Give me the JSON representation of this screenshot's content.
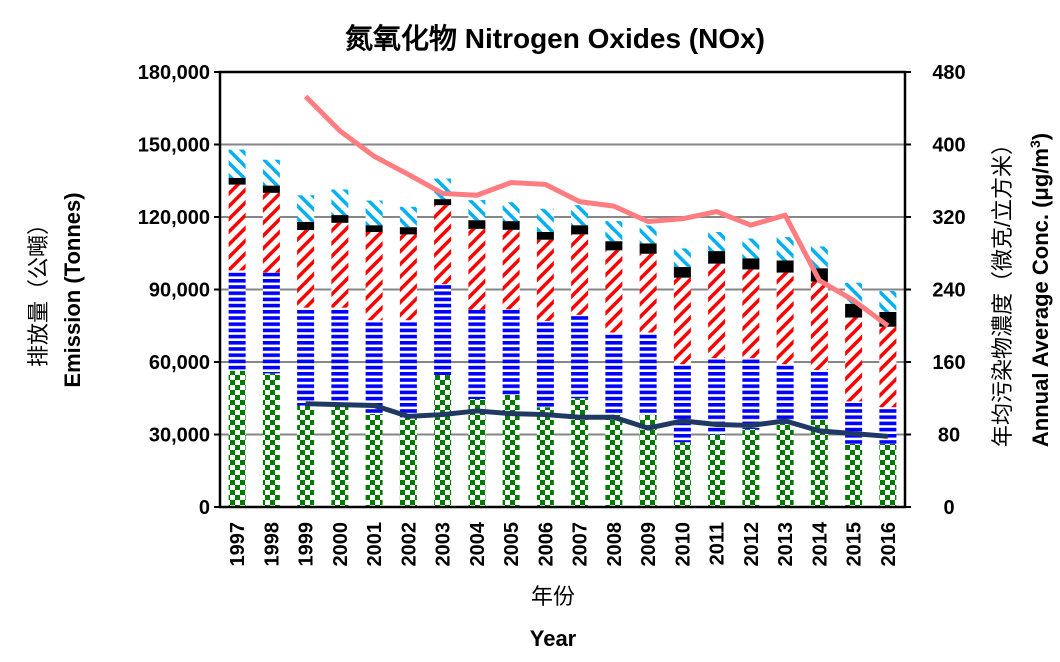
{
  "chart_data": {
    "type": "bar",
    "stacked": true,
    "title": "氮氧化物 Nitrogen Oxides (NOx)",
    "xlabel_zh": "年份",
    "xlabel": "Year",
    "ylabel_zh": "排放量（公噸）",
    "ylabel": "Emission (Tonnes)",
    "y2label_zh": "年均污染物濃度（微克/立方米）",
    "y2label": "Annual Average Conc. (μg/m",
    "y2label_sup": "3",
    "y2label_end": ")",
    "ylim": [
      0,
      180000
    ],
    "yticks": [
      "0",
      "30,000",
      "60,000",
      "90,000",
      "120,000",
      "150,000",
      "180,000"
    ],
    "y2lim": [
      0,
      480
    ],
    "y2ticks": [
      "0",
      "80",
      "160",
      "240",
      "320",
      "400",
      "480"
    ],
    "grid": true,
    "categories": [
      "1997",
      "1998",
      "1999",
      "2000",
      "2001",
      "2002",
      "2003",
      "2004",
      "2005",
      "2006",
      "2007",
      "2008",
      "2009",
      "2010",
      "2011",
      "2012",
      "2013",
      "2014",
      "2015",
      "2016"
    ],
    "series": [
      {
        "pattern": "checker",
        "color": "#007a00",
        "values": [
          56400,
          55300,
          42000,
          42000,
          38500,
          37100,
          54600,
          44700,
          46400,
          41300,
          45000,
          38200,
          38200,
          26800,
          30000,
          32300,
          34400,
          36000,
          26100,
          26100
        ]
      },
      {
        "pattern": "horizontal-stripes",
        "color": "#0000ff",
        "values": [
          41500,
          41700,
          40500,
          40500,
          38800,
          40200,
          37600,
          36900,
          35400,
          35700,
          34500,
          34000,
          34000,
          32300,
          31600,
          29300,
          24700,
          20700,
          17600,
          15200
        ]
      },
      {
        "pattern": "diagonal-down",
        "color": "#ff0000",
        "values": [
          35500,
          33000,
          32100,
          35100,
          36500,
          35500,
          32700,
          33500,
          32900,
          33600,
          33300,
          34000,
          32600,
          35800,
          39100,
          36700,
          37900,
          36600,
          34700,
          33300
        ]
      },
      {
        "pattern": "solid",
        "color": "#000000",
        "values": [
          2800,
          3000,
          3400,
          3200,
          2800,
          3000,
          2500,
          3600,
          3600,
          3200,
          3800,
          3800,
          4300,
          4400,
          5200,
          4600,
          5000,
          5500,
          5700,
          6100
        ]
      },
      {
        "pattern": "diagonal-up",
        "color": "#00b0f0",
        "values": [
          11700,
          10700,
          11000,
          10600,
          10200,
          8400,
          8500,
          8300,
          7800,
          9600,
          8300,
          8300,
          7400,
          7700,
          7900,
          8200,
          9700,
          9000,
          8700,
          8700
        ]
      }
    ],
    "lines": [
      {
        "axis": "right",
        "color": "#ff7c80",
        "values": [
          null,
          null,
          453,
          415,
          387,
          367,
          346,
          344,
          358,
          356,
          337,
          332,
          315,
          318,
          326,
          311,
          322,
          250,
          228,
          200
        ]
      },
      {
        "axis": "right",
        "color": "#1f3864",
        "values": [
          null,
          null,
          114,
          113,
          112,
          100,
          102,
          106,
          103,
          102,
          99,
          99,
          87,
          95,
          91,
          90,
          95,
          84,
          81,
          78
        ]
      }
    ]
  }
}
